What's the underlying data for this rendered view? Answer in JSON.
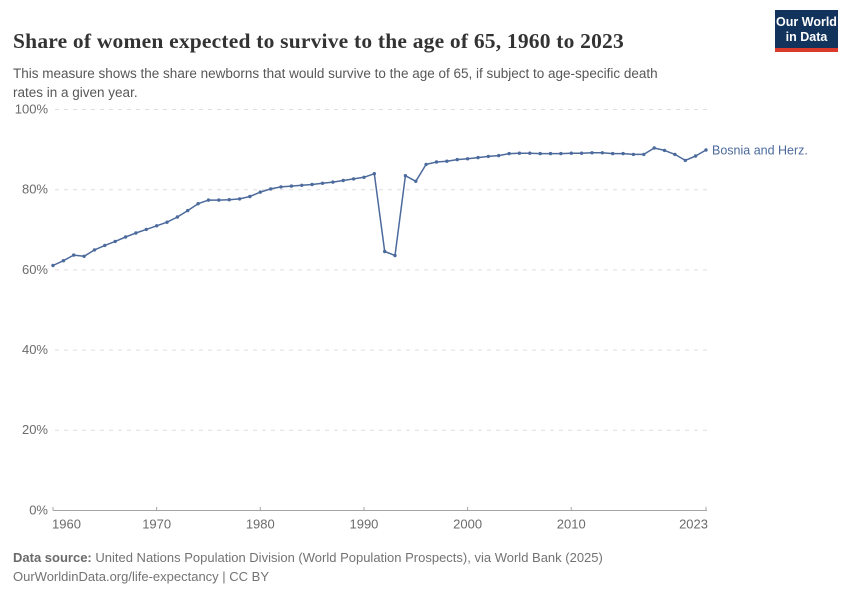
{
  "header": {
    "title": "Share of women expected to survive to the age of 65, 1960 to 2023",
    "subtitle_line1": "This measure shows the share newborns that would survive to the age of 65, if subject to age-specific death",
    "subtitle_line2": "rates in a given year.",
    "logo": {
      "line1": "Our World",
      "line2": "in Data"
    }
  },
  "chart_data": {
    "type": "line",
    "title": "Share of women expected to survive to the age of 65, 1960 to 2023",
    "xlabel": "",
    "ylabel": "",
    "xlim": [
      1960,
      2023
    ],
    "ylim": [
      0,
      100
    ],
    "grid": "horizontal dashed gridlines",
    "legend_position": "label at end of line",
    "x_ticks": [
      {
        "v": 1960,
        "label": "1960"
      },
      {
        "v": 1970,
        "label": "1970"
      },
      {
        "v": 1980,
        "label": "1980"
      },
      {
        "v": 1990,
        "label": "1990"
      },
      {
        "v": 2000,
        "label": "2000"
      },
      {
        "v": 2010,
        "label": "2010"
      },
      {
        "v": 2023,
        "label": "2023"
      }
    ],
    "y_ticks": [
      {
        "v": 0,
        "label": "0%"
      },
      {
        "v": 20,
        "label": "20%"
      },
      {
        "v": 40,
        "label": "40%"
      },
      {
        "v": 60,
        "label": "60%"
      },
      {
        "v": 80,
        "label": "80%"
      },
      {
        "v": 100,
        "label": "100%"
      }
    ],
    "series": [
      {
        "name": "Bosnia and Herz.",
        "color": "#4C6A9C",
        "years": [
          1960,
          1961,
          1962,
          1963,
          1964,
          1965,
          1966,
          1967,
          1968,
          1969,
          1970,
          1971,
          1972,
          1973,
          1974,
          1975,
          1976,
          1977,
          1978,
          1979,
          1980,
          1981,
          1982,
          1983,
          1984,
          1985,
          1986,
          1987,
          1988,
          1989,
          1990,
          1991,
          1992,
          1993,
          1994,
          1995,
          1996,
          1997,
          1998,
          1999,
          2000,
          2001,
          2002,
          2003,
          2004,
          2005,
          2006,
          2007,
          2008,
          2009,
          2010,
          2011,
          2012,
          2013,
          2014,
          2015,
          2016,
          2017,
          2018,
          2019,
          2020,
          2021,
          2022,
          2023
        ],
        "values": [
          61.1,
          62.3,
          63.7,
          63.4,
          65.0,
          66.1,
          67.1,
          68.2,
          69.2,
          70.1,
          71.0,
          71.9,
          73.2,
          74.8,
          76.5,
          77.4,
          77.4,
          77.5,
          77.7,
          78.3,
          79.4,
          80.2,
          80.7,
          80.9,
          81.1,
          81.3,
          81.6,
          81.9,
          82.3,
          82.7,
          83.1,
          84.0,
          64.6,
          63.6,
          83.5,
          82.1,
          86.3,
          86.9,
          87.1,
          87.5,
          87.7,
          88.0,
          88.3,
          88.5,
          89.0,
          89.1,
          89.1,
          89.0,
          89.0,
          89.0,
          89.1,
          89.1,
          89.2,
          89.2,
          89.0,
          89.0,
          88.8,
          88.8,
          90.4,
          89.8,
          88.8,
          87.3,
          88.4,
          89.9
        ]
      }
    ]
  },
  "footer": {
    "source_label": "Data source:",
    "source_text": " United Nations Population Division (World Population Prospects), via World Bank (2025)",
    "line2": "OurWorldinData.org/life-expectancy | CC BY"
  },
  "colors": {
    "line": "#4C6A9C",
    "grid": "#DEDEDE",
    "axis": "#A5A5A5",
    "tick_label": "#6B6B6B",
    "logo_bg": "#12335C",
    "logo_accent": "#D93A2B"
  }
}
